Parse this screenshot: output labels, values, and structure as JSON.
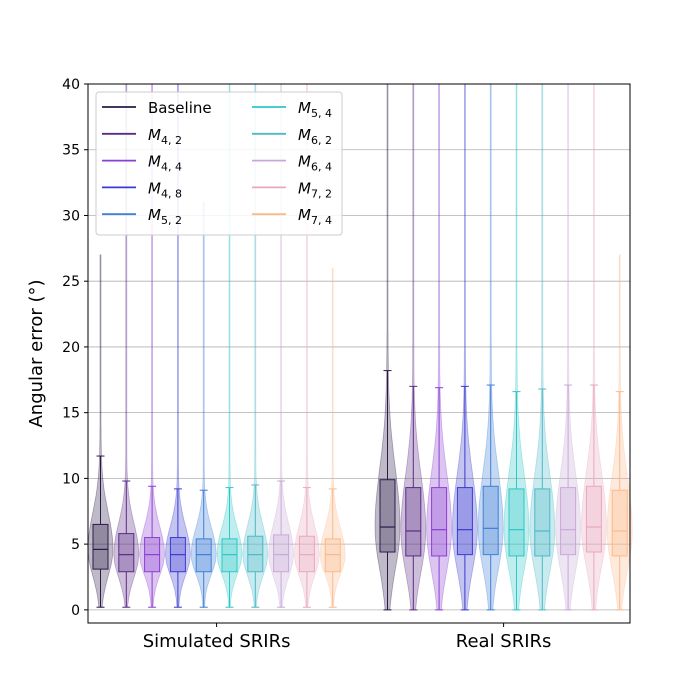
{
  "chart_data": {
    "type": "box",
    "title": "",
    "ylabel": "Angular error (°)",
    "xlabel": "",
    "ylim": [
      -1,
      40
    ],
    "yticks": [
      0,
      5,
      10,
      15,
      20,
      25,
      30,
      35,
      40
    ],
    "grid": "horizontal",
    "legend_position": "top-left",
    "groups": [
      "Simulated SRIRs",
      "Real SRIRs"
    ],
    "series": [
      {
        "name": "Baseline",
        "main": "M",
        "sub": "",
        "color": "#2a1a4a",
        "simulated": {
          "whisker_low": 0.2,
          "q1": 3.1,
          "median": 4.6,
          "q3": 6.5,
          "whisker_high": 11.7,
          "max": 27.0
        },
        "real": {
          "whisker_low": 0.0,
          "q1": 4.4,
          "median": 6.3,
          "q3": 9.9,
          "whisker_high": 18.2,
          "max": 40.0
        }
      },
      {
        "name": "M4,2",
        "main": "M",
        "sub": "4, 2",
        "color": "#5b2a86",
        "simulated": {
          "whisker_low": 0.2,
          "q1": 2.9,
          "median": 4.2,
          "q3": 5.8,
          "whisker_high": 9.8,
          "max": 40.0
        },
        "real": {
          "whisker_low": 0.0,
          "q1": 4.1,
          "median": 6.0,
          "q3": 9.3,
          "whisker_high": 17.0,
          "max": 40.0
        }
      },
      {
        "name": "M4,4",
        "main": "M",
        "sub": "4, 4",
        "color": "#8a3fd1",
        "simulated": {
          "whisker_low": 0.2,
          "q1": 2.9,
          "median": 4.2,
          "q3": 5.5,
          "whisker_high": 9.4,
          "max": 40.0
        },
        "real": {
          "whisker_low": 0.0,
          "q1": 4.1,
          "median": 6.1,
          "q3": 9.3,
          "whisker_high": 16.9,
          "max": 40.0
        }
      },
      {
        "name": "M4,8",
        "main": "M",
        "sub": "4, 8",
        "color": "#3a3ad0",
        "simulated": {
          "whisker_low": 0.2,
          "q1": 2.9,
          "median": 4.2,
          "q3": 5.5,
          "whisker_high": 9.2,
          "max": 40.0
        },
        "real": {
          "whisker_low": 0.0,
          "q1": 4.2,
          "median": 6.1,
          "q3": 9.3,
          "whisker_high": 17.0,
          "max": 40.0
        }
      },
      {
        "name": "M5,2",
        "main": "M",
        "sub": "5, 2",
        "color": "#3f7fd6",
        "simulated": {
          "whisker_low": 0.2,
          "q1": 2.9,
          "median": 4.2,
          "q3": 5.4,
          "whisker_high": 9.1,
          "max": 31.0
        },
        "real": {
          "whisker_low": 0.0,
          "q1": 4.2,
          "median": 6.2,
          "q3": 9.4,
          "whisker_high": 17.1,
          "max": 40.0
        }
      },
      {
        "name": "M5,4",
        "main": "M",
        "sub": "5, 4",
        "color": "#2ec7c7",
        "simulated": {
          "whisker_low": 0.2,
          "q1": 2.9,
          "median": 4.2,
          "q3": 5.4,
          "whisker_high": 9.3,
          "max": 40.0
        },
        "real": {
          "whisker_low": 0.0,
          "q1": 4.1,
          "median": 6.1,
          "q3": 9.2,
          "whisker_high": 16.6,
          "max": 40.0
        }
      },
      {
        "name": "M6,2",
        "main": "M",
        "sub": "6, 2",
        "color": "#4cb8c8",
        "simulated": {
          "whisker_low": 0.2,
          "q1": 2.9,
          "median": 4.2,
          "q3": 5.6,
          "whisker_high": 9.5,
          "max": 40.0
        },
        "real": {
          "whisker_low": 0.0,
          "q1": 4.1,
          "median": 6.0,
          "q3": 9.2,
          "whisker_high": 16.8,
          "max": 40.0
        }
      },
      {
        "name": "M6,4",
        "main": "M",
        "sub": "6, 4",
        "color": "#c8a8d8",
        "simulated": {
          "whisker_low": 0.2,
          "q1": 2.9,
          "median": 4.2,
          "q3": 5.7,
          "whisker_high": 9.8,
          "max": 40.0
        },
        "real": {
          "whisker_low": 0.0,
          "q1": 4.2,
          "median": 6.1,
          "q3": 9.3,
          "whisker_high": 17.1,
          "max": 40.0
        }
      },
      {
        "name": "M7,2",
        "main": "M",
        "sub": "7, 2",
        "color": "#e8a8bc",
        "simulated": {
          "whisker_low": 0.2,
          "q1": 2.9,
          "median": 4.2,
          "q3": 5.6,
          "whisker_high": 9.3,
          "max": 40.0
        },
        "real": {
          "whisker_low": 0.0,
          "q1": 4.4,
          "median": 6.3,
          "q3": 9.4,
          "whisker_high": 17.1,
          "max": 40.0
        }
      },
      {
        "name": "M7,4",
        "main": "M",
        "sub": "7, 4",
        "color": "#fbb98a",
        "simulated": {
          "whisker_low": 0.2,
          "q1": 2.9,
          "median": 4.2,
          "q3": 5.4,
          "whisker_high": 9.2,
          "max": 26.0
        },
        "real": {
          "whisker_low": 0.0,
          "q1": 4.1,
          "median": 6.0,
          "q3": 9.1,
          "whisker_high": 16.6,
          "max": 27.0
        }
      }
    ]
  }
}
